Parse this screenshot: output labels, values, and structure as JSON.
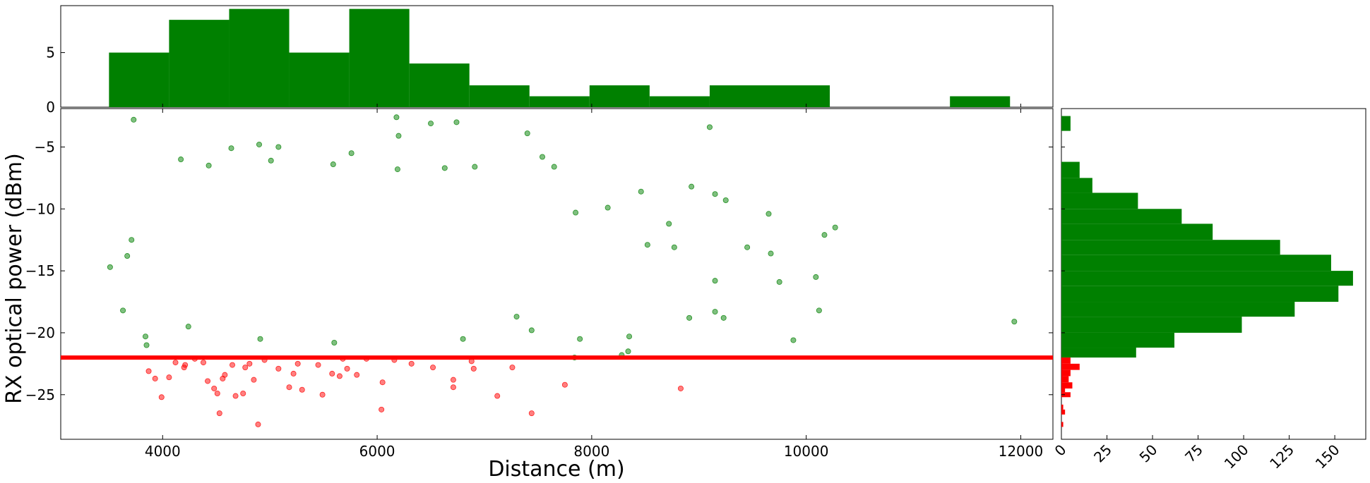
{
  "chart_data": [
    {
      "panel": "main-scatter",
      "type": "scatter",
      "xlabel": "Distance (m)",
      "ylabel": "RX optical power (dBm)",
      "xlim": [
        3050,
        12300
      ],
      "ylim": [
        -28.6,
        -1.9
      ],
      "xticks": [
        4000,
        6000,
        8000,
        10000,
        12000
      ],
      "yticks": [
        -25,
        -20,
        -15,
        -10,
        -5
      ],
      "threshold": {
        "y": -22,
        "color": "#ff0000"
      },
      "series": [
        {
          "color": "#008000",
          "opacity": 0.5,
          "points": [
            [
              3730,
              -2.8
            ],
            [
              6180,
              -2.6
            ],
            [
              6200,
              -4.1
            ],
            [
              6500,
              -3.1
            ],
            [
              6740,
              -3.0
            ],
            [
              7400,
              -3.9
            ],
            [
              9100,
              -3.4
            ],
            [
              7540,
              -5.8
            ],
            [
              4640,
              -5.1
            ],
            [
              4900,
              -4.8
            ],
            [
              5080,
              -5.0
            ],
            [
              5760,
              -5.5
            ],
            [
              4170,
              -6.0
            ],
            [
              4430,
              -6.5
            ],
            [
              5010,
              -6.1
            ],
            [
              5590,
              -6.4
            ],
            [
              6190,
              -6.8
            ],
            [
              6630,
              -6.7
            ],
            [
              6910,
              -6.6
            ],
            [
              7650,
              -6.6
            ],
            [
              8460,
              -8.6
            ],
            [
              8930,
              -8.2
            ],
            [
              9150,
              -8.8
            ],
            [
              9250,
              -9.3
            ],
            [
              8150,
              -9.9
            ],
            [
              7850,
              -10.3
            ],
            [
              9650,
              -10.4
            ],
            [
              8720,
              -11.2
            ],
            [
              10170,
              -12.1
            ],
            [
              10270,
              -11.5
            ],
            [
              8520,
              -12.9
            ],
            [
              8770,
              -13.1
            ],
            [
              9450,
              -13.1
            ],
            [
              9670,
              -13.6
            ],
            [
              10090,
              -15.5
            ],
            [
              9750,
              -15.9
            ],
            [
              9150,
              -15.8
            ],
            [
              9150,
              -18.3
            ],
            [
              9230,
              -18.8
            ],
            [
              9880,
              -20.6
            ],
            [
              10120,
              -18.2
            ],
            [
              8910,
              -18.8
            ],
            [
              8340,
              -21.5
            ],
            [
              8280,
              -21.8
            ],
            [
              11940,
              -19.1
            ],
            [
              3510,
              -14.7
            ],
            [
              3630,
              -18.2
            ],
            [
              3670,
              -13.8
            ],
            [
              3710,
              -12.5
            ],
            [
              7890,
              -20.5
            ],
            [
              7440,
              -19.8
            ],
            [
              8350,
              -20.3
            ],
            [
              3840,
              -20.3
            ],
            [
              3850,
              -21.0
            ],
            [
              7840,
              -22.0
            ],
            [
              4240,
              -19.5
            ],
            [
              4910,
              -20.5
            ],
            [
              5600,
              -20.8
            ],
            [
              6800,
              -20.5
            ],
            [
              7300,
              -18.7
            ]
          ]
        },
        {
          "color": "#ff0000",
          "opacity": 0.5,
          "points": [
            [
              3870,
              -23.1
            ],
            [
              3990,
              -25.2
            ],
            [
              4060,
              -23.6
            ],
            [
              4200,
              -22.8
            ],
            [
              4210,
              -22.6
            ],
            [
              4420,
              -23.9
            ],
            [
              4480,
              -24.5
            ],
            [
              4510,
              -24.9
            ],
            [
              4530,
              -26.5
            ],
            [
              4560,
              -23.7
            ],
            [
              4580,
              -23.4
            ],
            [
              4650,
              -22.6
            ],
            [
              4680,
              -25.1
            ],
            [
              4750,
              -24.9
            ],
            [
              4770,
              -22.8
            ],
            [
              4810,
              -22.5
            ],
            [
              4850,
              -23.8
            ],
            [
              4890,
              -27.4
            ],
            [
              5080,
              -22.9
            ],
            [
              5180,
              -24.4
            ],
            [
              5220,
              -23.3
            ],
            [
              5300,
              -24.6
            ],
            [
              5450,
              -22.6
            ],
            [
              5490,
              -25.0
            ],
            [
              5580,
              -23.3
            ],
            [
              5650,
              -23.5
            ],
            [
              5720,
              -22.9
            ],
            [
              5810,
              -23.4
            ],
            [
              6040,
              -26.2
            ],
            [
              6050,
              -24.0
            ],
            [
              6320,
              -22.5
            ],
            [
              6520,
              -22.8
            ],
            [
              6710,
              -24.4
            ],
            [
              6710,
              -23.8
            ],
            [
              7120,
              -25.1
            ],
            [
              7260,
              -22.8
            ],
            [
              7440,
              -26.5
            ],
            [
              7750,
              -24.2
            ],
            [
              8830,
              -24.5
            ],
            [
              4300,
              -22.1
            ],
            [
              4950,
              -22.2
            ],
            [
              5680,
              -22.1
            ],
            [
              6160,
              -22.2
            ],
            [
              6880,
              -22.3
            ],
            [
              4380,
              -22.4
            ],
            [
              5260,
              -22.5
            ],
            [
              5900,
              -22.1
            ],
            [
              6900,
              -22.9
            ],
            [
              4120,
              -22.4
            ],
            [
              3930,
              -23.7
            ]
          ]
        }
      ]
    },
    {
      "panel": "top-histogram",
      "type": "bar",
      "xlim": [
        3050,
        12300
      ],
      "ylim": [
        0,
        9.3
      ],
      "yticks": [
        0,
        5
      ],
      "color": "#008000",
      "bins": [
        {
          "x0": 3500,
          "x1": 4060,
          "count": 5
        },
        {
          "x0": 4060,
          "x1": 4620,
          "count": 8
        },
        {
          "x0": 4620,
          "x1": 5180,
          "count": 9
        },
        {
          "x0": 5180,
          "x1": 5740,
          "count": 5
        },
        {
          "x0": 5740,
          "x1": 6300,
          "count": 9
        },
        {
          "x0": 6300,
          "x1": 6860,
          "count": 4
        },
        {
          "x0": 6860,
          "x1": 7420,
          "count": 2
        },
        {
          "x0": 7420,
          "x1": 7980,
          "count": 1
        },
        {
          "x0": 7980,
          "x1": 8540,
          "count": 2
        },
        {
          "x0": 8540,
          "x1": 9100,
          "count": 1
        },
        {
          "x0": 9100,
          "x1": 9660,
          "count": 2
        },
        {
          "x0": 9660,
          "x1": 10220,
          "count": 2
        },
        {
          "x0": 10220,
          "x1": 10780,
          "count": 0
        },
        {
          "x0": 10780,
          "x1": 11340,
          "count": 0
        },
        {
          "x0": 11340,
          "x1": 11900,
          "count": 1
        }
      ]
    },
    {
      "panel": "right-histogram",
      "type": "bar",
      "orientation": "horizontal",
      "xlim": [
        0,
        167
      ],
      "ylim": [
        -28.6,
        -1.9
      ],
      "xticks": [
        0,
        25,
        50,
        75,
        100,
        125,
        150
      ],
      "bins": [
        {
          "y0": -3.7,
          "y1": -2.5,
          "count": 5,
          "color": "#008000"
        },
        {
          "y0": -6.2,
          "y1": -3.7,
          "count": 0,
          "color": "#008000"
        },
        {
          "y0": -7.5,
          "y1": -6.2,
          "count": 10,
          "color": "#008000"
        },
        {
          "y0": -8.7,
          "y1": -7.5,
          "count": 17,
          "color": "#008000"
        },
        {
          "y0": -10.0,
          "y1": -8.7,
          "count": 42,
          "color": "#008000"
        },
        {
          "y0": -11.2,
          "y1": -10.0,
          "count": 66,
          "color": "#008000"
        },
        {
          "y0": -12.5,
          "y1": -11.2,
          "count": 83,
          "color": "#008000"
        },
        {
          "y0": -13.7,
          "y1": -12.5,
          "count": 120,
          "color": "#008000"
        },
        {
          "y0": -15.0,
          "y1": -13.7,
          "count": 148,
          "color": "#008000"
        },
        {
          "y0": -16.2,
          "y1": -15.0,
          "count": 160,
          "color": "#008000"
        },
        {
          "y0": -17.5,
          "y1": -16.2,
          "count": 152,
          "color": "#008000"
        },
        {
          "y0": -18.7,
          "y1": -17.5,
          "count": 128,
          "color": "#008000"
        },
        {
          "y0": -20.0,
          "y1": -18.7,
          "count": 99,
          "color": "#008000"
        },
        {
          "y0": -21.2,
          "y1": -20.0,
          "count": 62,
          "color": "#008000"
        },
        {
          "y0": -22.0,
          "y1": -21.2,
          "count": 41,
          "color": "#008000"
        },
        {
          "y0": -22.5,
          "y1": -22.0,
          "count": 5,
          "color": "#ff0000"
        },
        {
          "y0": -23.0,
          "y1": -22.5,
          "count": 10,
          "color": "#ff0000"
        },
        {
          "y0": -23.5,
          "y1": -23.0,
          "count": 5,
          "color": "#ff0000"
        },
        {
          "y0": -24.0,
          "y1": -23.5,
          "count": 4,
          "color": "#ff0000"
        },
        {
          "y0": -24.5,
          "y1": -24.0,
          "count": 6,
          "color": "#ff0000"
        },
        {
          "y0": -24.8,
          "y1": -24.5,
          "count": 2,
          "color": "#ff0000"
        },
        {
          "y0": -25.2,
          "y1": -24.8,
          "count": 5,
          "color": "#ff0000"
        },
        {
          "y0": -26.2,
          "y1": -25.8,
          "count": 1,
          "color": "#ff0000"
        },
        {
          "y0": -26.6,
          "y1": -26.2,
          "count": 2,
          "color": "#ff0000"
        },
        {
          "y0": -27.6,
          "y1": -27.2,
          "count": 1,
          "color": "#ff0000"
        }
      ]
    }
  ]
}
